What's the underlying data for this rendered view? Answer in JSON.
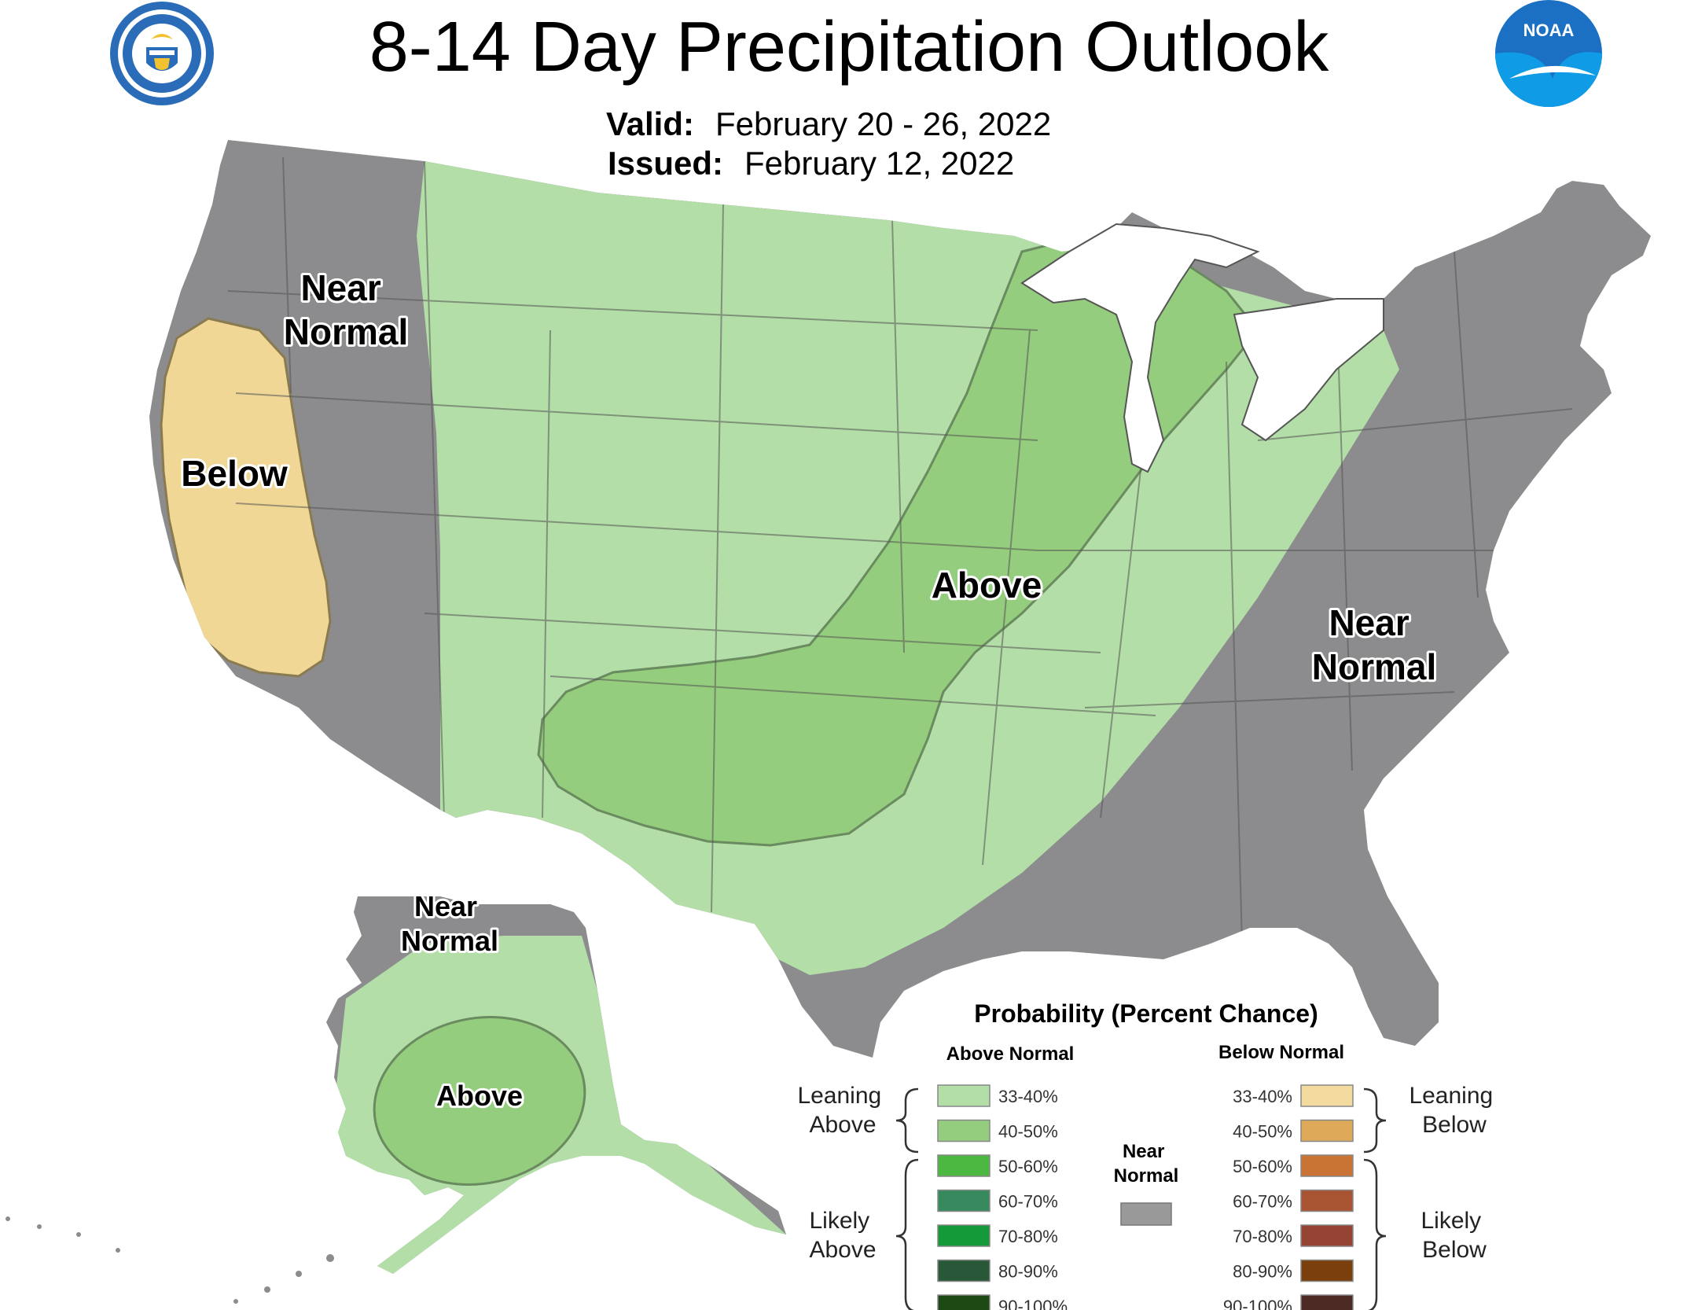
{
  "header": {
    "title": "8-14 Day Precipitation Outlook",
    "valid_label": "Valid:",
    "valid_value": "February 20 - 26, 2022",
    "issued_label": "Issued:",
    "issued_value": "February 12, 2022",
    "left_logo_icon": "department-of-commerce-seal",
    "right_logo_icon": "noaa-logo",
    "right_logo_text": "NOAA"
  },
  "map": {
    "regions": {
      "near_normal_west": "Near\nNormal",
      "below_west": "Below",
      "above_central": "Above",
      "near_normal_east": "Near\nNormal",
      "near_normal_alaska": "Near\nNormal",
      "above_alaska": "Above"
    },
    "colors": {
      "near_normal": "#8c8c8e",
      "leaning_above": "#b3dea7",
      "above_40_50": "#94cd7d",
      "leaning_below": "#f0d796",
      "state_lines": "#555555"
    }
  },
  "legend": {
    "title": "Probability (Percent Chance)",
    "above_header": "Above Normal",
    "below_header": "Below Normal",
    "near_normal_label": "Near\nNormal",
    "near_normal_color": "#999999",
    "leaning_above_label": "Leaning\nAbove",
    "likely_above_label": "Likely\nAbove",
    "leaning_below_label": "Leaning\nBelow",
    "likely_below_label": "Likely\nBelow",
    "above": [
      {
        "range": "33-40%",
        "color": "#b3dea7"
      },
      {
        "range": "40-50%",
        "color": "#94cd7d"
      },
      {
        "range": "50-60%",
        "color": "#4cb842"
      },
      {
        "range": "60-70%",
        "color": "#378a5e"
      },
      {
        "range": "70-80%",
        "color": "#159a3a"
      },
      {
        "range": "80-90%",
        "color": "#295838"
      },
      {
        "range": "90-100%",
        "color": "#1c4914"
      }
    ],
    "below": [
      {
        "range": "33-40%",
        "color": "#f3dba0"
      },
      {
        "range": "40-50%",
        "color": "#dfa95a"
      },
      {
        "range": "50-60%",
        "color": "#c97434"
      },
      {
        "range": "60-70%",
        "color": "#a85433"
      },
      {
        "range": "70-80%",
        "color": "#944334"
      },
      {
        "range": "80-90%",
        "color": "#7a3f0c"
      },
      {
        "range": "90-100%",
        "color": "#4e2a24"
      }
    ]
  }
}
